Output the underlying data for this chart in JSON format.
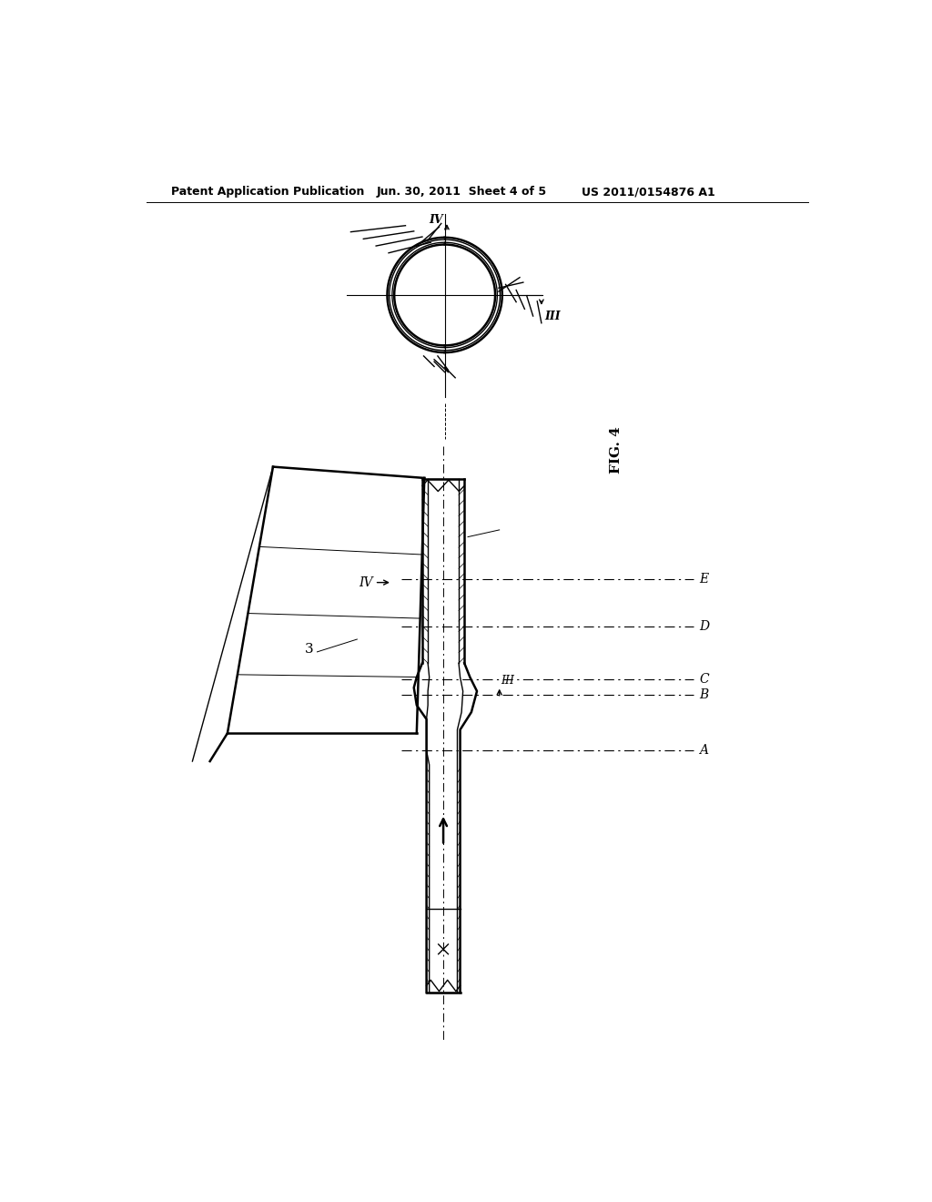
{
  "bg_color": "#ffffff",
  "header_left": "Patent Application Publication",
  "header_mid": "Jun. 30, 2011  Sheet 4 of 5",
  "header_right": "US 2011/0154876 A1",
  "fig_label": "FIG. 4",
  "label_A": "A",
  "label_B": "B",
  "label_C": "C",
  "label_D": "D",
  "label_E": "E",
  "label_III": "III",
  "label_IV": "IV",
  "label_3": "3"
}
